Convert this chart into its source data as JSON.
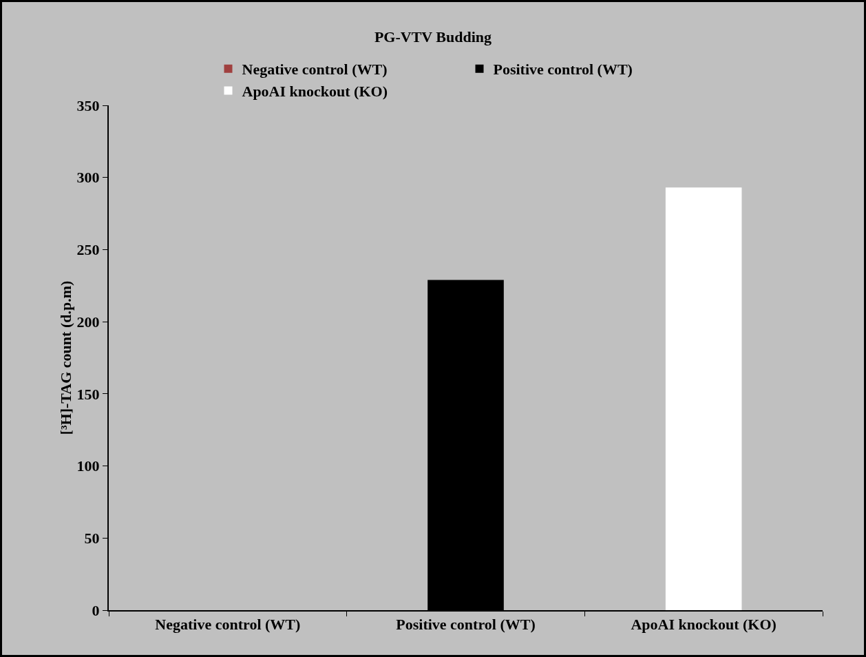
{
  "chart_data": {
    "type": "bar",
    "title": "PG-VTV Budding",
    "ylabel": "[³H]-TAG count (d.p.m)",
    "categories": [
      "Negative control (WT)",
      "Positive control (WT)",
      "ApoAI knockout (KO)"
    ],
    "series": [
      {
        "name": "Negative control (WT)",
        "color": "#a0403f",
        "values": [
          0,
          null,
          null
        ]
      },
      {
        "name": "Positive control (WT)",
        "color": "#000000",
        "values": [
          null,
          229,
          null
        ]
      },
      {
        "name": "ApoAI knockout (KO)",
        "color": "#ffffff",
        "values": [
          null,
          null,
          293
        ]
      }
    ],
    "ylim": [
      0,
      350
    ],
    "yticks": [
      0,
      50,
      100,
      150,
      200,
      250,
      300,
      350
    ],
    "grid": false,
    "legend": "top"
  }
}
